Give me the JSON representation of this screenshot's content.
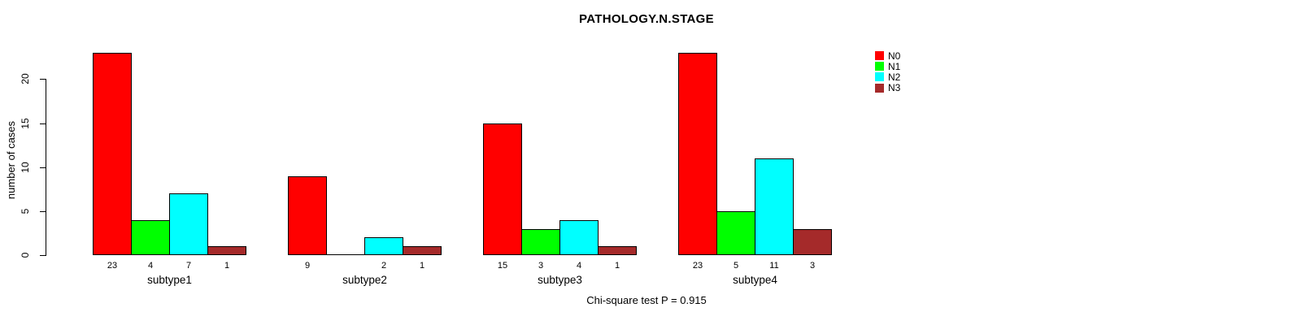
{
  "chart_data": {
    "type": "bar",
    "beside": true,
    "title": "PATHOLOGY.N.STAGE",
    "ylabel": "number of cases",
    "xlabel": "",
    "categories": [
      "subtype1",
      "subtype2",
      "subtype3",
      "subtype4"
    ],
    "series": [
      {
        "name": "N0",
        "color": "#ff0000",
        "values": [
          23,
          9,
          15,
          23
        ]
      },
      {
        "name": "N1",
        "color": "#00ff00",
        "values": [
          4,
          0,
          3,
          5
        ]
      },
      {
        "name": "N2",
        "color": "#00ffff",
        "values": [
          7,
          2,
          4,
          11
        ]
      },
      {
        "name": "N3",
        "color": "#a52a2a",
        "values": [
          1,
          1,
          1,
          3
        ]
      }
    ],
    "bar_value_labels": [
      [
        "23",
        "4",
        "7",
        "1"
      ],
      [
        "9",
        "",
        "2",
        "1"
      ],
      [
        "15",
        "3",
        "4",
        "1"
      ],
      [
        "23",
        "5",
        "11",
        "3"
      ]
    ],
    "yticks": [
      0,
      5,
      10,
      15,
      20
    ],
    "ylim": [
      0,
      23
    ],
    "grid": false,
    "legend_position": "top-right",
    "legend_labels": [
      "N0",
      "N1",
      "N2",
      "N3"
    ],
    "annotation": "Chi-square test P = 0.915",
    "bar_border_color": "#000000",
    "axis_color": "#000000"
  }
}
